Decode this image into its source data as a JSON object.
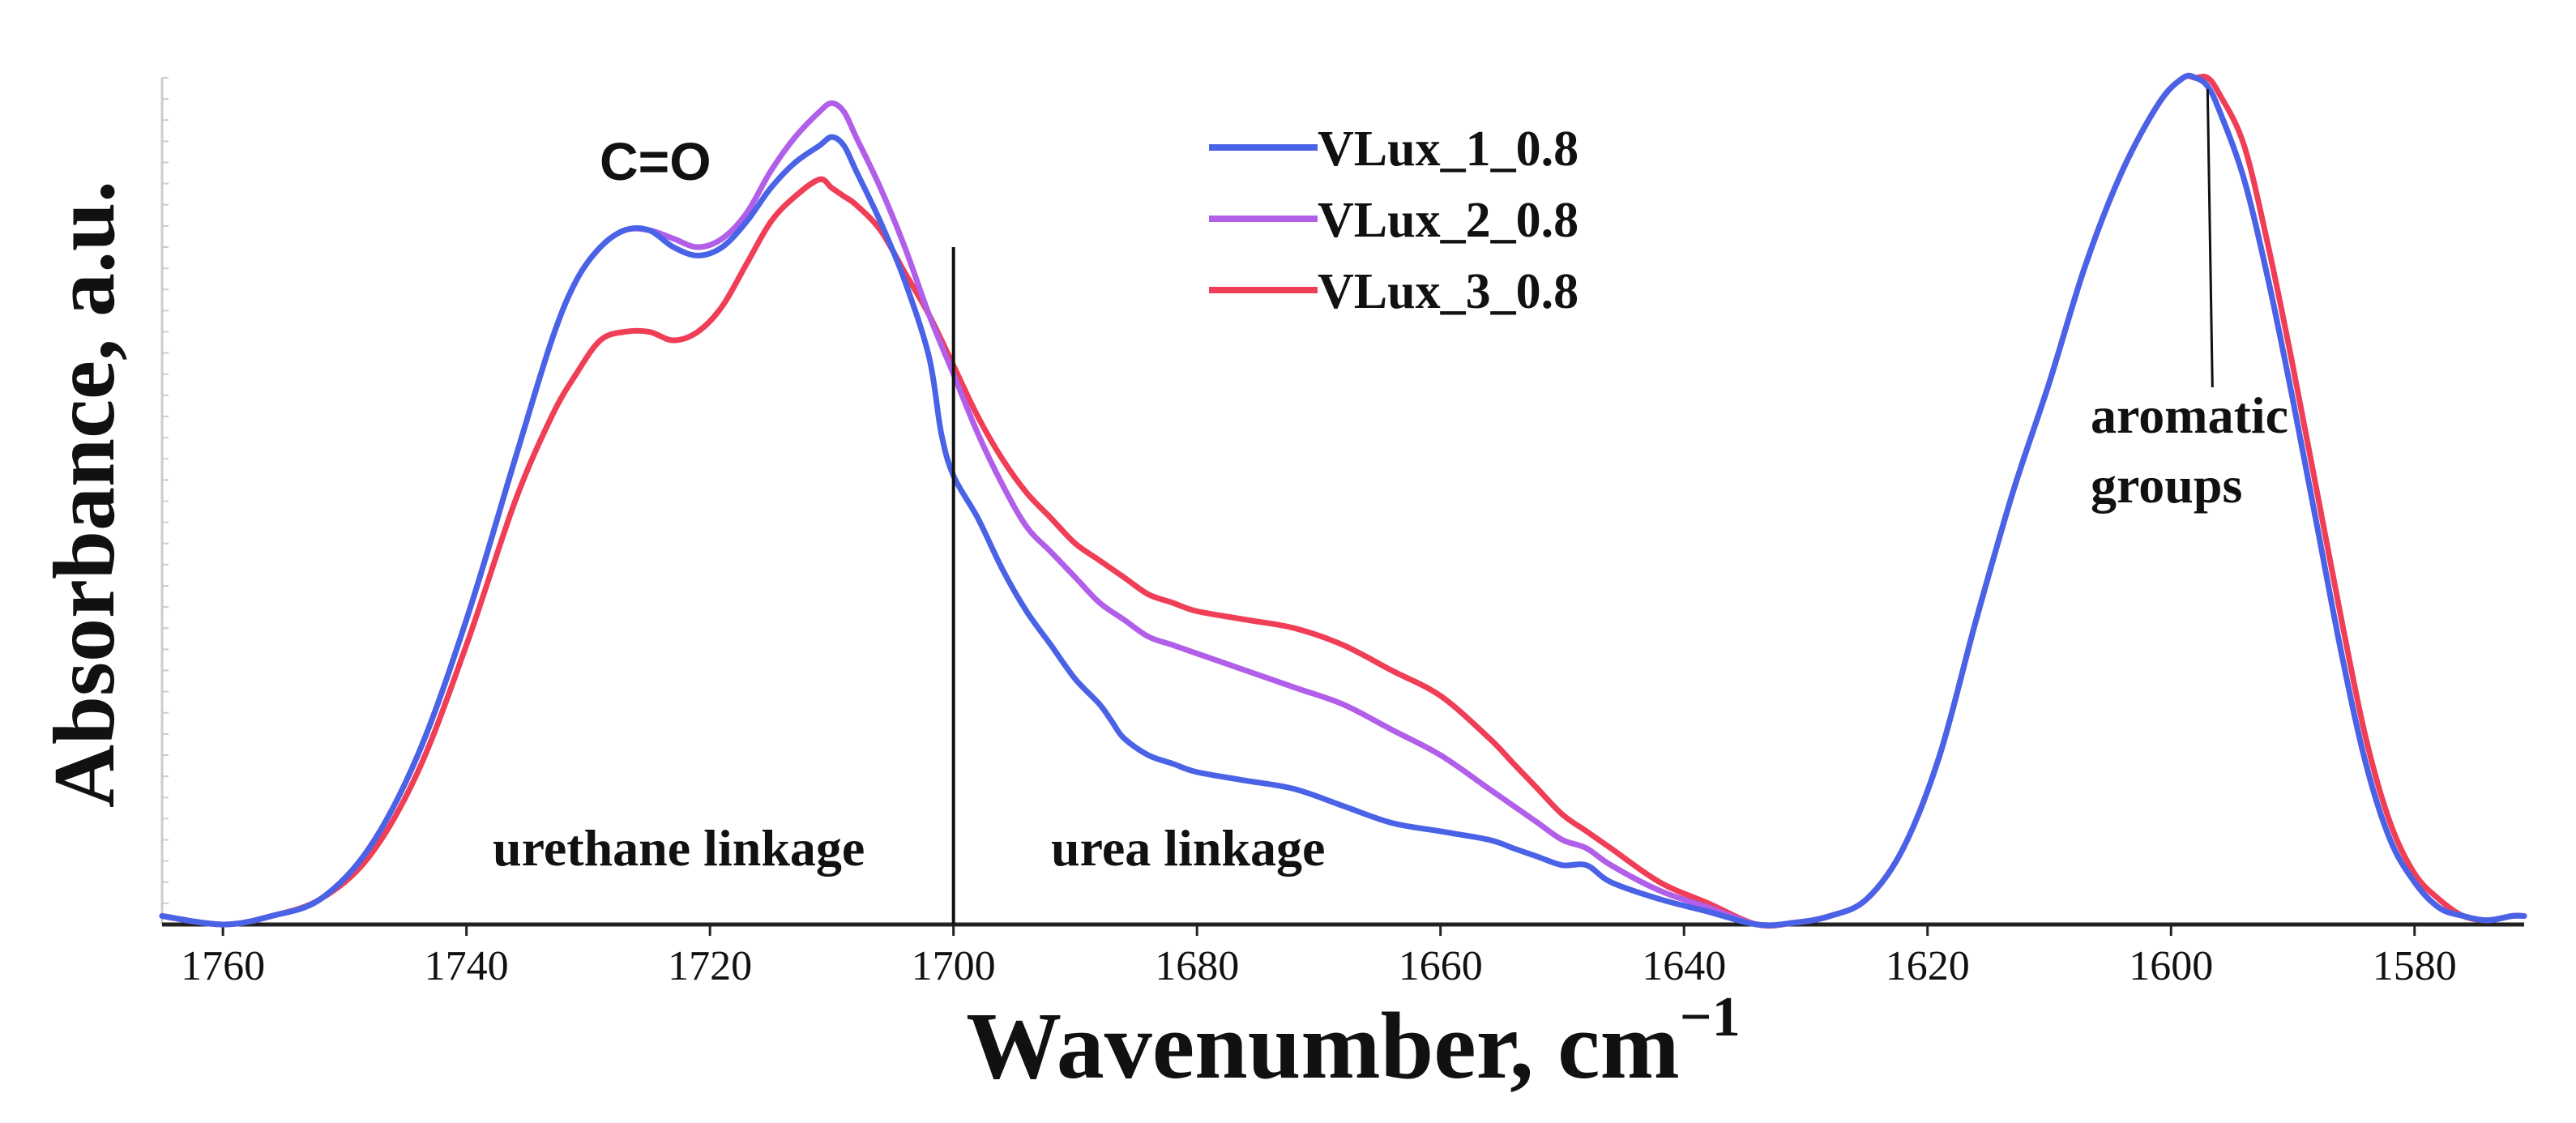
{
  "chart_data": {
    "type": "line",
    "title": "",
    "xlabel": "Wavenumber, cm",
    "xlabel_superscript": "−1",
    "ylabel": "Absorbance, a.u.",
    "xlim": [
      1765,
      1571
    ],
    "x_reversed": true,
    "ylim": [
      0,
      1
    ],
    "grid": false,
    "legend_position": "top-center",
    "x_ticks": [
      "1760",
      "1740",
      "1720",
      "1700",
      "1680",
      "1660",
      "1640",
      "1620",
      "1600",
      "1580"
    ],
    "x_tick_values": [
      1760,
      1740,
      1720,
      1700,
      1680,
      1660,
      1640,
      1620,
      1600,
      1580
    ],
    "series": [
      {
        "name": "VLux_1_0.8",
        "color": "#4a63e6",
        "x": [
          1765,
          1760,
          1756,
          1752,
          1748,
          1744,
          1740,
          1736,
          1733,
          1731,
          1729,
          1727,
          1725,
          1723,
          1721,
          1719,
          1717,
          1715,
          1713,
          1711,
          1710,
          1709,
          1708,
          1706,
          1704,
          1702,
          1701,
          1700,
          1698,
          1696,
          1694,
          1692,
          1690,
          1688,
          1687,
          1686,
          1684,
          1682,
          1680,
          1676,
          1672,
          1668,
          1664,
          1660,
          1656,
          1654,
          1652,
          1650,
          1648,
          1646,
          1642,
          1638,
          1634,
          1631,
          1628,
          1625,
          1622,
          1619,
          1616,
          1613,
          1610,
          1607,
          1604,
          1601,
          1599,
          1598,
          1597,
          1596,
          1594,
          1592,
          1590,
          1588,
          1586,
          1584,
          1582,
          1580,
          1578,
          1576,
          1574,
          1572,
          1571
        ],
        "y": [
          0.01,
          0.0,
          0.01,
          0.03,
          0.09,
          0.2,
          0.36,
          0.55,
          0.69,
          0.76,
          0.8,
          0.82,
          0.82,
          0.8,
          0.79,
          0.8,
          0.83,
          0.87,
          0.9,
          0.92,
          0.93,
          0.92,
          0.89,
          0.83,
          0.76,
          0.67,
          0.58,
          0.53,
          0.48,
          0.42,
          0.37,
          0.33,
          0.29,
          0.26,
          0.24,
          0.22,
          0.2,
          0.19,
          0.18,
          0.17,
          0.16,
          0.14,
          0.12,
          0.11,
          0.1,
          0.09,
          0.08,
          0.07,
          0.07,
          0.05,
          0.03,
          0.015,
          0.0,
          0.002,
          0.01,
          0.03,
          0.09,
          0.2,
          0.36,
          0.51,
          0.64,
          0.78,
          0.89,
          0.97,
          1.0,
          1.0,
          0.99,
          0.96,
          0.88,
          0.76,
          0.62,
          0.47,
          0.32,
          0.19,
          0.1,
          0.05,
          0.02,
          0.01,
          0.005,
          0.01,
          0.01
        ]
      },
      {
        "name": "VLux_2_0.8",
        "color": "#b15ee8",
        "x": [
          1765,
          1760,
          1756,
          1752,
          1748,
          1744,
          1740,
          1736,
          1733,
          1731,
          1729,
          1727,
          1725,
          1723,
          1721,
          1719,
          1717,
          1715,
          1713,
          1711,
          1710,
          1709,
          1708,
          1706,
          1704,
          1702,
          1700,
          1698,
          1696,
          1694,
          1692,
          1690,
          1688,
          1686,
          1684,
          1682,
          1680,
          1676,
          1672,
          1668,
          1664,
          1660,
          1656,
          1654,
          1652,
          1650,
          1648,
          1646,
          1642,
          1638,
          1634,
          1631,
          1628,
          1625,
          1622,
          1619,
          1616,
          1613,
          1610,
          1607,
          1604,
          1601,
          1599,
          1598,
          1597,
          1596,
          1594,
          1592,
          1590,
          1588,
          1586,
          1584,
          1582,
          1580,
          1578,
          1576,
          1574,
          1572,
          1571
        ],
        "y": [
          0.01,
          0.0,
          0.01,
          0.03,
          0.09,
          0.2,
          0.36,
          0.55,
          0.69,
          0.76,
          0.8,
          0.82,
          0.82,
          0.81,
          0.8,
          0.81,
          0.84,
          0.89,
          0.93,
          0.96,
          0.97,
          0.96,
          0.93,
          0.87,
          0.8,
          0.72,
          0.65,
          0.58,
          0.52,
          0.47,
          0.44,
          0.41,
          0.38,
          0.36,
          0.34,
          0.33,
          0.32,
          0.3,
          0.28,
          0.26,
          0.23,
          0.2,
          0.16,
          0.14,
          0.12,
          0.1,
          0.09,
          0.07,
          0.04,
          0.02,
          0.0,
          0.002,
          0.01,
          0.03,
          0.09,
          0.2,
          0.36,
          0.51,
          0.64,
          0.78,
          0.89,
          0.97,
          1.0,
          1.0,
          0.99,
          0.96,
          0.88,
          0.76,
          0.62,
          0.47,
          0.32,
          0.19,
          0.1,
          0.05,
          0.02,
          0.01,
          0.005,
          0.01,
          0.01
        ]
      },
      {
        "name": "VLux_3_0.8",
        "color": "#ef3e55",
        "x": [
          1765,
          1760,
          1756,
          1752,
          1748,
          1744,
          1740,
          1736,
          1733,
          1731,
          1729,
          1727,
          1725,
          1723,
          1721,
          1719,
          1717,
          1715,
          1713,
          1711,
          1710,
          1709,
          1708,
          1706,
          1704,
          1702,
          1700,
          1698,
          1696,
          1694,
          1692,
          1690,
          1688,
          1686,
          1684,
          1682,
          1680,
          1676,
          1672,
          1668,
          1664,
          1660,
          1656,
          1654,
          1652,
          1650,
          1648,
          1646,
          1642,
          1638,
          1634,
          1631,
          1628,
          1625,
          1622,
          1619,
          1616,
          1613,
          1610,
          1607,
          1604,
          1601,
          1599,
          1598,
          1597,
          1596,
          1594,
          1592,
          1590,
          1588,
          1586,
          1584,
          1582,
          1580,
          1578,
          1576,
          1574,
          1572,
          1571
        ],
        "y": [
          0.01,
          0.0,
          0.01,
          0.03,
          0.08,
          0.18,
          0.33,
          0.5,
          0.6,
          0.65,
          0.69,
          0.7,
          0.7,
          0.69,
          0.7,
          0.73,
          0.78,
          0.83,
          0.86,
          0.88,
          0.87,
          0.86,
          0.85,
          0.82,
          0.77,
          0.72,
          0.66,
          0.6,
          0.55,
          0.51,
          0.48,
          0.45,
          0.43,
          0.41,
          0.39,
          0.38,
          0.37,
          0.36,
          0.35,
          0.33,
          0.3,
          0.27,
          0.22,
          0.19,
          0.16,
          0.13,
          0.11,
          0.09,
          0.05,
          0.025,
          0.0,
          0.002,
          0.01,
          0.03,
          0.09,
          0.2,
          0.36,
          0.51,
          0.64,
          0.78,
          0.89,
          0.97,
          1.0,
          1.0,
          1.0,
          0.98,
          0.92,
          0.8,
          0.66,
          0.51,
          0.36,
          0.22,
          0.12,
          0.06,
          0.03,
          0.01,
          0.005,
          0.01,
          0.01
        ]
      }
    ],
    "annotations": {
      "carbonyl": "C=O",
      "urethane": "urethane linkage",
      "urea": "urea linkage",
      "aromatic_line1": "aromatic",
      "aromatic_line2": "groups",
      "divider_x": 1700,
      "aromatic_marker_x": 1597
    }
  }
}
